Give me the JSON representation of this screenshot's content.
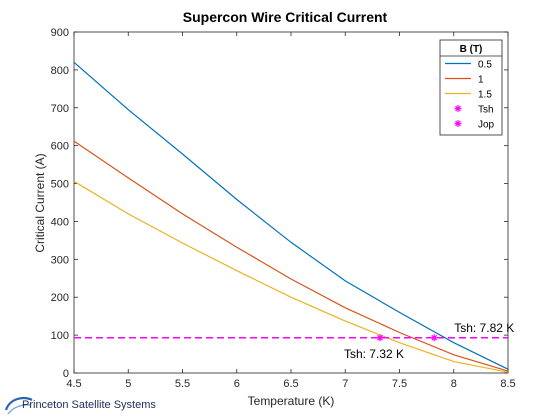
{
  "chart_data": {
    "type": "line",
    "title": "Supercon Wire Critical Current",
    "xlabel": "Temperature (K)",
    "ylabel": "Critical Current (A)",
    "xlim": [
      4.5,
      8.5
    ],
    "ylim": [
      0,
      900
    ],
    "xticks": [
      4.5,
      5,
      5.5,
      6,
      6.5,
      7,
      7.5,
      8,
      8.5
    ],
    "xtick_labels": [
      "4.5",
      "5",
      "5.5",
      "6",
      "6.5",
      "7",
      "7.5",
      "8",
      "8.5"
    ],
    "yticks": [
      0,
      100,
      200,
      300,
      400,
      500,
      600,
      700,
      800,
      900
    ],
    "ytick_labels": [
      "0",
      "100",
      "200",
      "300",
      "400",
      "500",
      "600",
      "700",
      "800",
      "900"
    ],
    "grid": false,
    "legend_title": "B (T)",
    "legend_position": "top-right",
    "series": [
      {
        "name": "0.5",
        "color": "#0072BD",
        "x": [
          4.5,
          5.0,
          5.5,
          6.0,
          6.5,
          7.0,
          7.5,
          8.0,
          8.5
        ],
        "y": [
          820,
          695,
          578,
          458,
          345,
          243,
          160,
          80,
          10
        ]
      },
      {
        "name": "1",
        "color": "#D95319",
        "x": [
          4.5,
          5.0,
          5.5,
          6.0,
          6.5,
          7.0,
          7.5,
          8.0,
          8.5
        ],
        "y": [
          612,
          515,
          420,
          332,
          248,
          172,
          107,
          48,
          5
        ]
      },
      {
        "name": "1.5",
        "color": "#EDB120",
        "x": [
          4.5,
          5.0,
          5.5,
          6.0,
          6.5,
          7.0,
          7.5,
          8.0,
          8.5
        ],
        "y": [
          506,
          420,
          343,
          270,
          200,
          137,
          80,
          30,
          2
        ]
      },
      {
        "name": "Tsh",
        "type": "marker",
        "color": "#FF00FF",
        "x": [
          7.32,
          7.82
        ],
        "y": [
          93,
          93
        ]
      },
      {
        "name": "Jop",
        "type": "line",
        "color": "#FF00FF",
        "x": [
          4.5,
          8.5
        ],
        "y": [
          93,
          93
        ]
      }
    ],
    "annotations": [
      {
        "text": "Tsh: 7.82 K",
        "x": 7.82,
        "y": 93,
        "placement": "above-right"
      },
      {
        "text": "Tsh: 7.32 K",
        "x": 7.32,
        "y": 93,
        "placement": "below-left"
      }
    ]
  },
  "branding": {
    "logo_text": "Princeton Satellite Systems"
  }
}
